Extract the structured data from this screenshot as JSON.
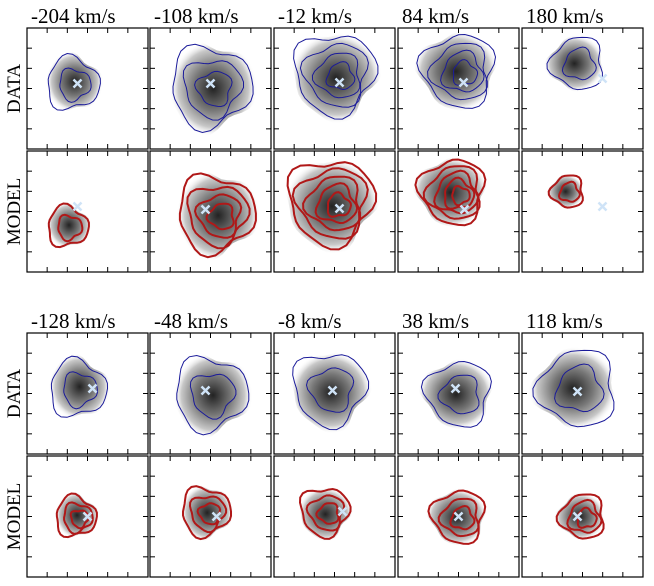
{
  "groups": [
    {
      "velocities": [
        "-204 km/s",
        "-108 km/s",
        "-12 km/s",
        "84 km/s",
        "180 km/s"
      ],
      "rows": [
        "DATA",
        "MODEL"
      ]
    },
    {
      "velocities": [
        "-128 km/s",
        "-48 km/s",
        "-8 km/s",
        "38 km/s",
        "118 km/s"
      ],
      "rows": [
        "DATA",
        "MODEL"
      ]
    }
  ]
}
